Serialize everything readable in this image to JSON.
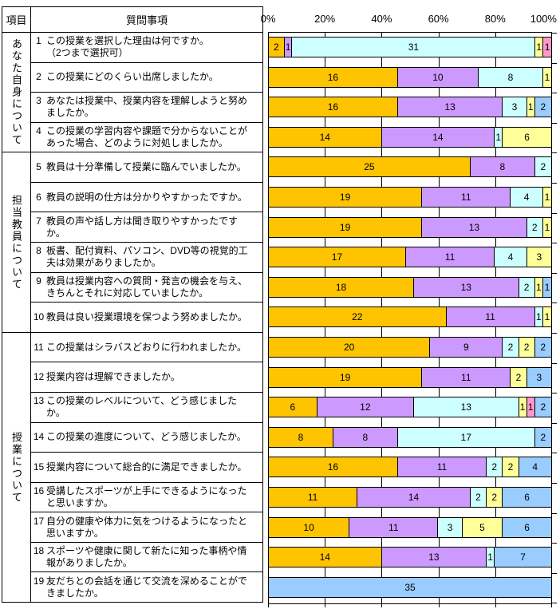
{
  "table": {
    "header_item": "項目",
    "header_question": "質問事項",
    "groups": [
      {
        "label": "あなた自身について",
        "row_count": 4
      },
      {
        "label": "担当教員について",
        "row_count": 6
      },
      {
        "label": "授業について",
        "row_count": 9
      }
    ],
    "questions": [
      {
        "no": "1",
        "text": "この授業を選択した理由は何ですか。\n（2つまで選択可）"
      },
      {
        "no": "2",
        "text": " この授業にどのくらい出席しましたか。"
      },
      {
        "no": "3",
        "text": "あなたは授業中、授業内容を理解しようと努めましたか。"
      },
      {
        "no": "4",
        "text": "この授業の学習内容や課題で分からないことがあった場合、どのように対処しましたか。"
      },
      {
        "no": "5",
        "text": "教員は十分準備して授業に臨んでいましたか。"
      },
      {
        "no": "6",
        "text": "教員の説明の仕方は分かりやすかったですか。"
      },
      {
        "no": "7",
        "text": "教員の声や話し方は聞き取りやすかったですか。"
      },
      {
        "no": "8",
        "text": "板書、配付資料、パソコン、DVD等の視覚的工夫は効果がありましたか。"
      },
      {
        "no": "9",
        "text": "教員は授業内容への質問・発言の機会を与え、きちんとそれに対応していましたか。"
      },
      {
        "no": "10",
        "text": "教員は良い授業環境を保つよう努めましたか。"
      },
      {
        "no": "11",
        "text": "この授業はシラバスどおりに行われましたか。"
      },
      {
        "no": "12",
        "text": "授業内容は理解できましたか。"
      },
      {
        "no": "13",
        "text": "この授業のレベルについて、どう感じましたか。"
      },
      {
        "no": "14",
        "text": "この授業の進度について、どう感じましたか。"
      },
      {
        "no": "15",
        "text": "授業内容について総合的に満足できましたか。"
      },
      {
        "no": "16",
        "text": "受講したスポーツが上手にできるようになったと思いますか。"
      },
      {
        "no": "17",
        "text": "自分の健康や体力に気をつけるようになったと思いますか。"
      },
      {
        "no": "18",
        "text": "スポーツや健康に関して新たに知った事柄や情報がありましたか。"
      },
      {
        "no": "19",
        "text": "友だちとの会話を通じて交流を深めることができましたか。"
      }
    ]
  },
  "chart_data": {
    "type": "bar",
    "stacked": true,
    "orientation": "horizontal",
    "x_axis": {
      "tick_labels": [
        "0%",
        "20%",
        "40%",
        "60%",
        "80%",
        "100%"
      ],
      "range": [
        0,
        100
      ],
      "axis_position": "top",
      "gridlines": true
    },
    "value_meaning": "respondent counts, bar scaled to 100% of row total",
    "palette": {
      "opt1": "#FFC400",
      "opt2": "#CC99FF",
      "opt3": "#CCFFFF",
      "opt4": "#FFFF99",
      "opt5": "#FF99CC",
      "opt6": "#99CCFF"
    },
    "rows": [
      {
        "question_no": 1,
        "total": 36,
        "segments": [
          {
            "color_key": "opt1",
            "value": 2
          },
          {
            "color_key": "opt2",
            "value": 1
          },
          {
            "color_key": "opt3",
            "value": 31
          },
          {
            "color_key": "opt4",
            "value": 1
          },
          {
            "color_key": "opt5",
            "value": 1
          }
        ]
      },
      {
        "question_no": 2,
        "total": 35,
        "segments": [
          {
            "color_key": "opt1",
            "value": 16
          },
          {
            "color_key": "opt2",
            "value": 10
          },
          {
            "color_key": "opt3",
            "value": 8
          },
          {
            "color_key": "opt4",
            "value": 1
          }
        ]
      },
      {
        "question_no": 3,
        "total": 35,
        "segments": [
          {
            "color_key": "opt1",
            "value": 16
          },
          {
            "color_key": "opt2",
            "value": 13
          },
          {
            "color_key": "opt3",
            "value": 3
          },
          {
            "color_key": "opt4",
            "value": 1
          },
          {
            "color_key": "opt6",
            "value": 2
          }
        ]
      },
      {
        "question_no": 4,
        "total": 35,
        "segments": [
          {
            "color_key": "opt1",
            "value": 14
          },
          {
            "color_key": "opt2",
            "value": 14
          },
          {
            "color_key": "opt3",
            "value": 1
          },
          {
            "color_key": "opt4",
            "value": 6
          }
        ]
      },
      {
        "question_no": 5,
        "total": 35,
        "segments": [
          {
            "color_key": "opt1",
            "value": 25
          },
          {
            "color_key": "opt2",
            "value": 8
          },
          {
            "color_key": "opt3",
            "value": 2
          }
        ]
      },
      {
        "question_no": 6,
        "total": 35,
        "segments": [
          {
            "color_key": "opt1",
            "value": 19
          },
          {
            "color_key": "opt2",
            "value": 11
          },
          {
            "color_key": "opt3",
            "value": 4
          },
          {
            "color_key": "opt4",
            "value": 1
          }
        ]
      },
      {
        "question_no": 7,
        "total": 35,
        "segments": [
          {
            "color_key": "opt1",
            "value": 19
          },
          {
            "color_key": "opt2",
            "value": 13
          },
          {
            "color_key": "opt3",
            "value": 2
          },
          {
            "color_key": "opt4",
            "value": 1
          }
        ]
      },
      {
        "question_no": 8,
        "total": 35,
        "segments": [
          {
            "color_key": "opt1",
            "value": 17
          },
          {
            "color_key": "opt2",
            "value": 11
          },
          {
            "color_key": "opt3",
            "value": 4
          },
          {
            "color_key": "opt4",
            "value": 3
          }
        ]
      },
      {
        "question_no": 9,
        "total": 35,
        "segments": [
          {
            "color_key": "opt1",
            "value": 18
          },
          {
            "color_key": "opt2",
            "value": 13
          },
          {
            "color_key": "opt3",
            "value": 2
          },
          {
            "color_key": "opt4",
            "value": 1
          },
          {
            "color_key": "opt6",
            "value": 1
          }
        ]
      },
      {
        "question_no": 10,
        "total": 35,
        "segments": [
          {
            "color_key": "opt1",
            "value": 22
          },
          {
            "color_key": "opt2",
            "value": 11
          },
          {
            "color_key": "opt3",
            "value": 1
          },
          {
            "color_key": "opt4",
            "value": 1
          }
        ]
      },
      {
        "question_no": 11,
        "total": 35,
        "segments": [
          {
            "color_key": "opt1",
            "value": 20
          },
          {
            "color_key": "opt2",
            "value": 9
          },
          {
            "color_key": "opt3",
            "value": 2
          },
          {
            "color_key": "opt4",
            "value": 2
          },
          {
            "color_key": "opt6",
            "value": 2
          }
        ]
      },
      {
        "question_no": 12,
        "total": 35,
        "segments": [
          {
            "color_key": "opt1",
            "value": 19
          },
          {
            "color_key": "opt2",
            "value": 11
          },
          {
            "color_key": "opt4",
            "value": 2
          },
          {
            "color_key": "opt6",
            "value": 3
          }
        ]
      },
      {
        "question_no": 13,
        "total": 35,
        "segments": [
          {
            "color_key": "opt1",
            "value": 6
          },
          {
            "color_key": "opt2",
            "value": 12
          },
          {
            "color_key": "opt3",
            "value": 13
          },
          {
            "color_key": "opt4",
            "value": 1
          },
          {
            "color_key": "opt5",
            "value": 1
          },
          {
            "color_key": "opt6",
            "value": 2
          }
        ]
      },
      {
        "question_no": 14,
        "total": 35,
        "segments": [
          {
            "color_key": "opt1",
            "value": 8
          },
          {
            "color_key": "opt2",
            "value": 8
          },
          {
            "color_key": "opt3",
            "value": 17
          },
          {
            "color_key": "opt6",
            "value": 2
          }
        ]
      },
      {
        "question_no": 15,
        "total": 35,
        "segments": [
          {
            "color_key": "opt1",
            "value": 16
          },
          {
            "color_key": "opt2",
            "value": 11
          },
          {
            "color_key": "opt3",
            "value": 2
          },
          {
            "color_key": "opt4",
            "value": 2
          },
          {
            "color_key": "opt6",
            "value": 4
          }
        ]
      },
      {
        "question_no": 16,
        "total": 35,
        "segments": [
          {
            "color_key": "opt1",
            "value": 11
          },
          {
            "color_key": "opt2",
            "value": 14
          },
          {
            "color_key": "opt3",
            "value": 2
          },
          {
            "color_key": "opt4",
            "value": 2
          },
          {
            "color_key": "opt6",
            "value": 6
          }
        ]
      },
      {
        "question_no": 17,
        "total": 35,
        "segments": [
          {
            "color_key": "opt1",
            "value": 10
          },
          {
            "color_key": "opt2",
            "value": 11
          },
          {
            "color_key": "opt3",
            "value": 3
          },
          {
            "color_key": "opt4",
            "value": 5
          },
          {
            "color_key": "opt6",
            "value": 6
          }
        ]
      },
      {
        "question_no": 18,
        "total": 35,
        "segments": [
          {
            "color_key": "opt1",
            "value": 14
          },
          {
            "color_key": "opt2",
            "value": 13
          },
          {
            "color_key": "opt3",
            "value": 1
          },
          {
            "color_key": "opt6",
            "value": 7
          }
        ]
      },
      {
        "question_no": 19,
        "total": 35,
        "segments": [
          {
            "color_key": "opt6",
            "value": 35
          }
        ]
      }
    ]
  }
}
